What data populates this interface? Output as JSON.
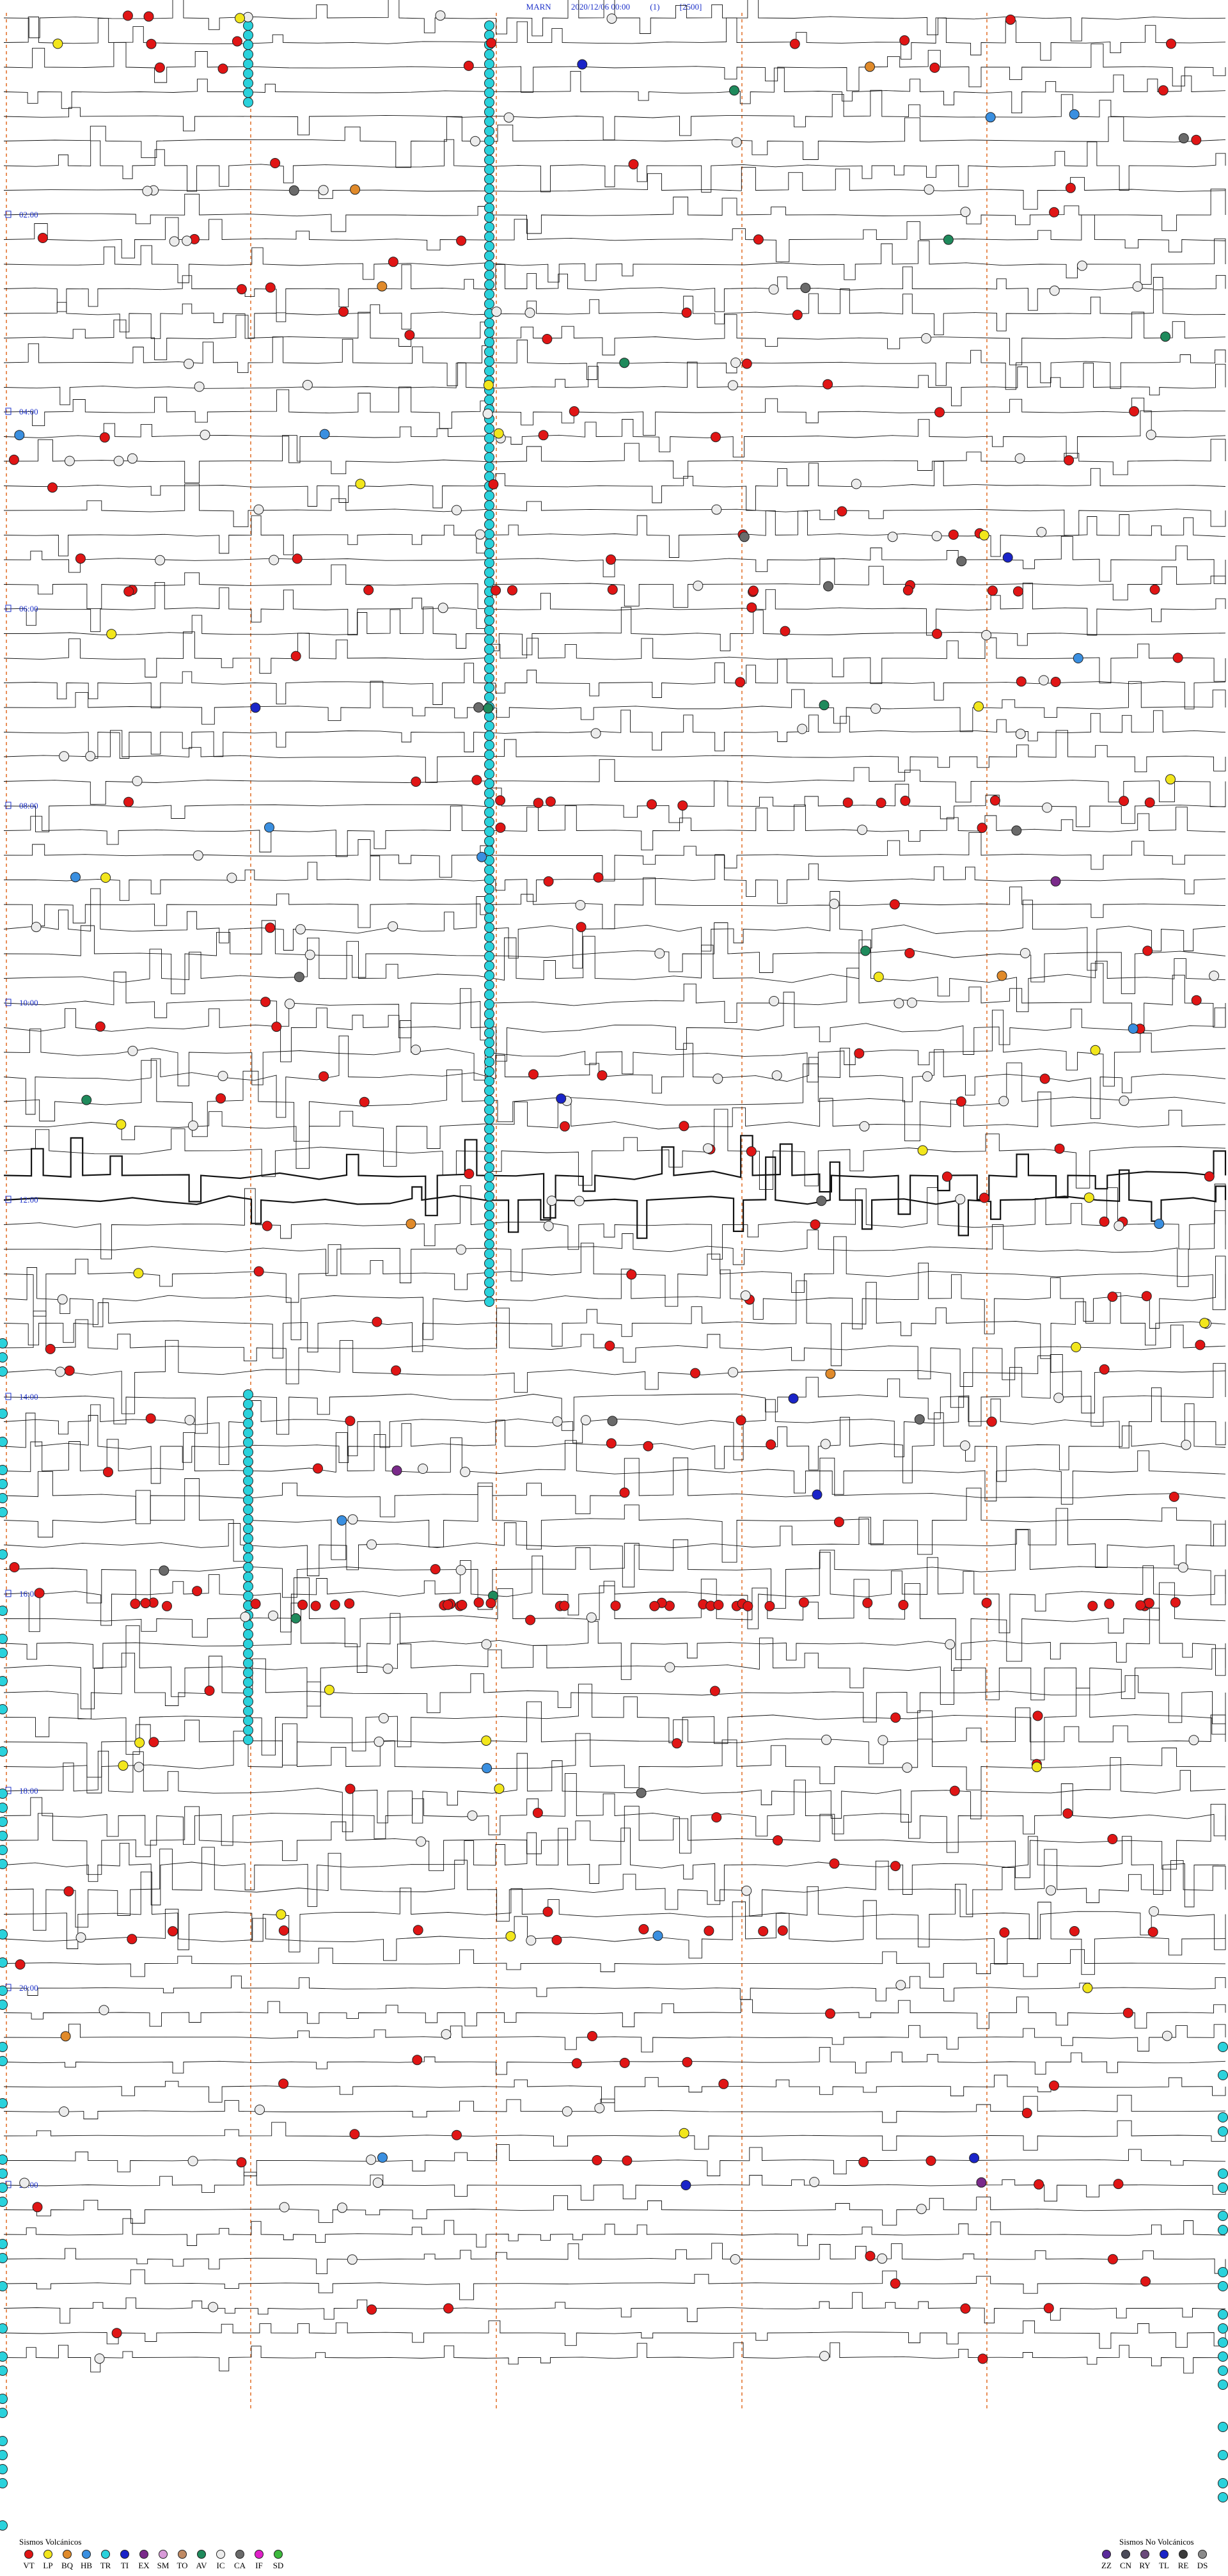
{
  "header": {
    "station": "MARN",
    "datetime": "2020/12/06 00:00",
    "channel": "(1)",
    "scale": "[2500]"
  },
  "chart_data": {
    "type": "scatter",
    "title": "",
    "time_labels": [
      "02:00",
      "04:00",
      "06:00",
      "08:00",
      "10:00",
      "12:00",
      "14:00",
      "16:00",
      "18:00",
      "20:00",
      "22:00"
    ],
    "rows_per_hour": 4,
    "hours": 24,
    "event_counts": {
      "VT": 180,
      "LP": 28,
      "BQ": 7,
      "HB": 14,
      "TR": 150,
      "TI": 8,
      "EX": 3,
      "AV": 10,
      "IC": 150,
      "CA": 14
    },
    "colors": {
      "VT": "#e01515",
      "LP": "#f2e61c",
      "BQ": "#e08a2a",
      "HB": "#3a8fe0",
      "TR": "#2ad2dc",
      "TI": "#1a24c8",
      "EX": "#7a2a8a",
      "SM": "#d89ad8",
      "TO": "#c08a64",
      "AV": "#1f8a5c",
      "IC": "#ececec",
      "CA": "#6a6a6a",
      "IF": "#e020c8",
      "SD": "#3cb83c",
      "ZZ": "#5a2a9a",
      "CN": "#4a4a58",
      "RY": "#6a4a7a",
      "TL": "#1a24c8",
      "RE": "#3a3a3a",
      "DS": "#8a8a8a"
    }
  },
  "legend_volcanic": {
    "title": "Sismos Volcánicos",
    "items": [
      {
        "code": "VT",
        "color": "#e01515"
      },
      {
        "code": "LP",
        "color": "#f2e61c"
      },
      {
        "code": "BQ",
        "color": "#e08a2a"
      },
      {
        "code": "HB",
        "color": "#3a8fe0"
      },
      {
        "code": "TR",
        "color": "#2ad2dc"
      },
      {
        "code": "TI",
        "color": "#1a24c8"
      },
      {
        "code": "EX",
        "color": "#7a2a8a"
      },
      {
        "code": "SM",
        "color": "#d89ad8"
      },
      {
        "code": "TO",
        "color": "#c08a64"
      },
      {
        "code": "AV",
        "color": "#1f8a5c"
      },
      {
        "code": "IC",
        "color": "#ececec"
      },
      {
        "code": "CA",
        "color": "#6a6a6a"
      },
      {
        "code": "IF",
        "color": "#e020c8"
      },
      {
        "code": "SD",
        "color": "#3cb83c"
      }
    ]
  },
  "legend_nonvolcanic": {
    "title": "Sismos No Volcánicos",
    "items": [
      {
        "code": "ZZ",
        "color": "#5a2a9a"
      },
      {
        "code": "CN",
        "color": "#4a4a58"
      },
      {
        "code": "RY",
        "color": "#6a4a7a"
      },
      {
        "code": "TL",
        "color": "#1a24c8"
      },
      {
        "code": "RE",
        "color": "#3a3a3a"
      },
      {
        "code": "DS",
        "color": "#8a8a8a"
      }
    ]
  }
}
